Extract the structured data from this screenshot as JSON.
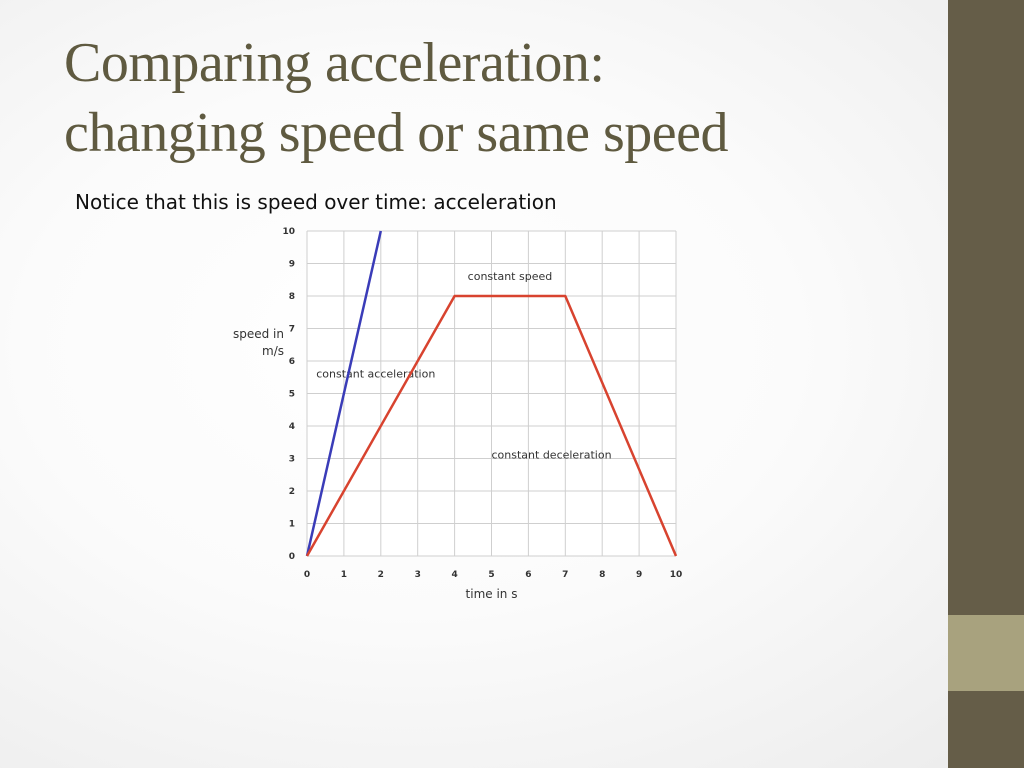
{
  "slide": {
    "title_line1": "Comparing acceleration:",
    "title_line2": "changing speed or same speed",
    "subtitle": "Notice that this is speed over time: acceleration"
  },
  "colors": {
    "sidebar": "#655d48",
    "accent": "#a8a27e",
    "title": "#5f5a40",
    "red_series": "#d8432f",
    "blue_series": "#3a3cb8",
    "grid": "#cfcfcf"
  },
  "chart_data": {
    "type": "line",
    "xlabel": "time in s",
    "ylabel_line1": "speed in",
    "ylabel_line2": "m/s",
    "xlim": [
      0,
      10
    ],
    "ylim": [
      0,
      10
    ],
    "xticks": [
      0,
      1,
      2,
      3,
      4,
      5,
      6,
      7,
      8,
      9,
      10
    ],
    "yticks": [
      0,
      1,
      2,
      3,
      4,
      5,
      6,
      7,
      8,
      9,
      10
    ],
    "grid": true,
    "series": [
      {
        "color": "#3a3cb8",
        "x": [
          0,
          2
        ],
        "y": [
          0,
          10
        ]
      },
      {
        "color": "#d8432f",
        "x": [
          0,
          4,
          7,
          10
        ],
        "y": [
          0,
          8,
          8,
          0
        ]
      }
    ],
    "annotations": [
      {
        "text": "constant speed",
        "x": 5.5,
        "y": 8.5
      },
      {
        "text": "constant acceleration",
        "x": 0.25,
        "y": 5.5
      },
      {
        "text": "constant deceleration",
        "x": 5,
        "y": 3
      }
    ]
  }
}
